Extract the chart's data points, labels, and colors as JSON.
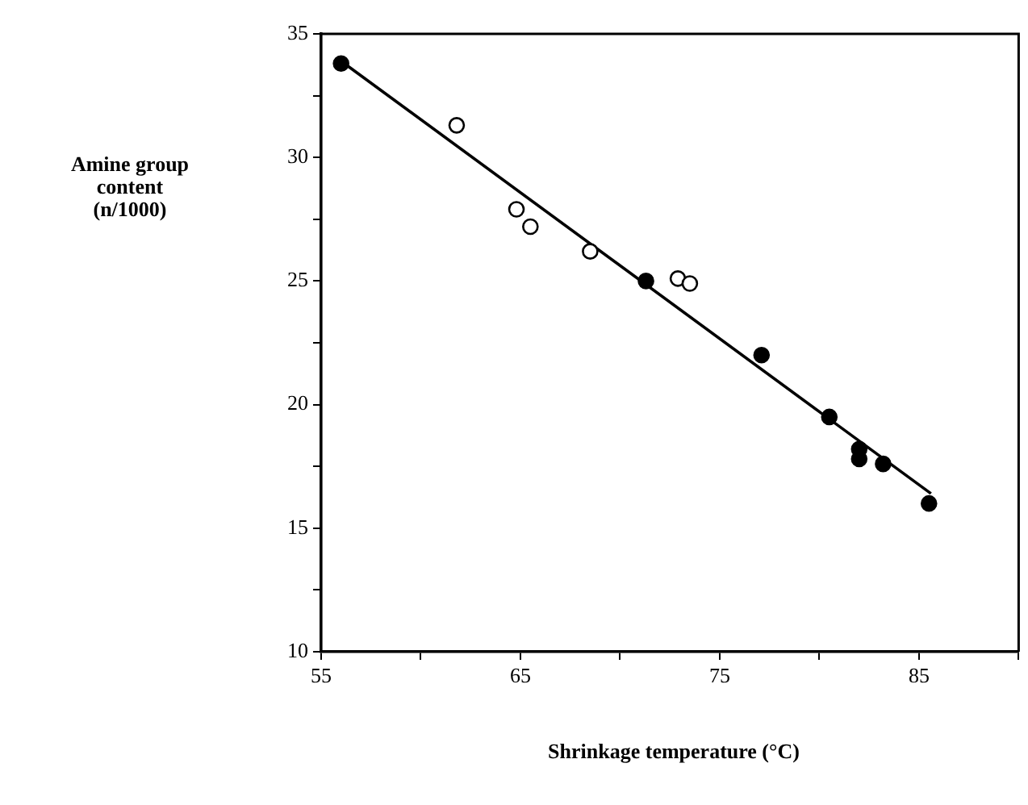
{
  "chart_data": {
    "type": "scatter",
    "xlabel": "Shrinkage temperature (°C)",
    "ylabel": "Amine group content (n/1000)",
    "xlim": [
      55,
      90
    ],
    "xticks": [
      55,
      {
        "value": 60,
        "label": null
      },
      65,
      {
        "value": 70,
        "label": null
      },
      75,
      {
        "value": 80,
        "label": null
      },
      85,
      {
        "value": 90,
        "label": null
      }
    ],
    "ylim": [
      10,
      35
    ],
    "yticks": [
      10,
      {
        "value": 12.5,
        "label": null
      },
      15,
      {
        "value": 17.5,
        "label": null
      },
      20,
      {
        "value": 22.5,
        "label": null
      },
      25,
      {
        "value": 27.5,
        "label": null
      },
      30,
      {
        "value": 32.5,
        "label": null
      },
      35
    ],
    "grid": false,
    "legend": false,
    "marker": "circle",
    "series": [
      {
        "type": "scatter",
        "color": "#000000",
        "x": [
          56.0,
          71.3,
          77.1,
          80.5,
          82.0,
          82.0,
          83.2,
          85.5
        ],
        "values": [
          33.8,
          25.0,
          22.0,
          19.5,
          18.2,
          17.8,
          17.6,
          16.0
        ]
      },
      {
        "type": "scatter",
        "color": "#ffffff",
        "x": [
          61.8,
          64.8,
          65.5,
          68.5,
          72.9,
          73.5
        ],
        "values": [
          31.3,
          27.9,
          27.2,
          26.2,
          25.1,
          24.9
        ]
      },
      {
        "type": "line",
        "color": "#000000",
        "line_style": "solid",
        "marker": "none",
        "x": [
          56.0,
          85.6
        ],
        "values": [
          33.9,
          16.4
        ]
      }
    ]
  }
}
